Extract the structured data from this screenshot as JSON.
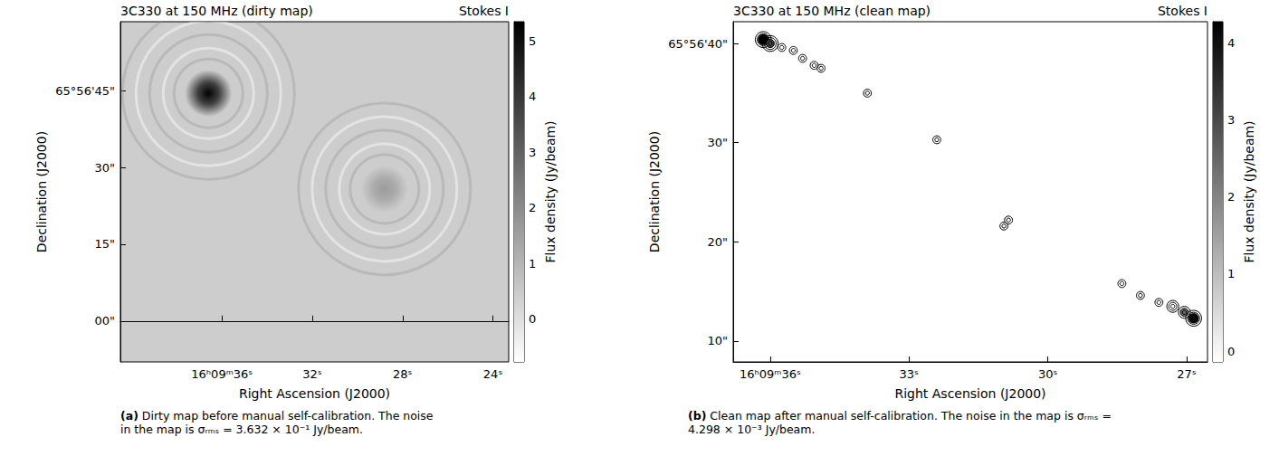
{
  "chart_data": [
    {
      "type": "image",
      "title": "3C330 at 150 MHz (dirty map)",
      "subtitle": "Stokes I",
      "x_label": "Right Ascension (J2000)",
      "y_label": "Declination (J2000)",
      "panel": "(a)",
      "caption": "Dirty map before manual self-calibration. The noise in the map is σᵣₘₛ = 3.632 × 10⁻¹ Jy/beam.",
      "xlim": [
        40.5,
        23.3
      ],
      "xticks": [
        {
          "value": 36,
          "label": "16ʰ09ᵐ36ˢ"
        },
        {
          "value": 32,
          "label": "32ˢ"
        },
        {
          "value": 28,
          "label": "28ˢ"
        },
        {
          "value": 24,
          "label": "24ˢ"
        }
      ],
      "ylim": [
        -8,
        58.5
      ],
      "yticks": [
        {
          "value": 0,
          "label": "00\""
        },
        {
          "value": 15,
          "label": "15\""
        },
        {
          "value": 30,
          "label": "30\""
        },
        {
          "value": 45,
          "label": "65°56'45\""
        }
      ],
      "colorbar_label": "Flux density (Jy/beam)",
      "colorbar_range": [
        -0.77,
        5.35
      ],
      "colorbar_ticks": [
        0,
        1,
        2,
        3,
        4,
        5
      ],
      "sources": [
        {
          "ra": 36.6,
          "dec": 44.5,
          "peak": 5.3
        },
        {
          "ra": 28.8,
          "dec": 25.8,
          "peak": 1.6
        }
      ]
    },
    {
      "type": "contour",
      "title": "3C330 at 150 MHz (clean map)",
      "subtitle": "Stokes I",
      "x_label": "Right Ascension (J2000)",
      "y_label": "Declination (J2000)",
      "panel": "(b)",
      "caption": "Clean map after manual self-calibration. The noise in the map is σᵣₘₛ = 4.298 × 10⁻³ Jy/beam.",
      "xlim": [
        36.8,
        26.55
      ],
      "xticks": [
        {
          "value": 36,
          "label": "16ʰ09ᵐ36ˢ"
        },
        {
          "value": 33,
          "label": "33ˢ"
        },
        {
          "value": 30,
          "label": "30ˢ"
        },
        {
          "value": 27,
          "label": "27ˢ"
        }
      ],
      "ylim": [
        7.9,
        42.2
      ],
      "yticks": [
        {
          "value": 10,
          "label": "10\""
        },
        {
          "value": 20,
          "label": "20\""
        },
        {
          "value": 30,
          "label": "30\""
        },
        {
          "value": 40,
          "label": "65°56'40\""
        }
      ],
      "colorbar_label": "Flux density (Jy/beam)",
      "colorbar_range": [
        -0.14,
        4.27
      ],
      "colorbar_ticks": [
        0,
        1,
        2,
        3,
        4
      ],
      "sources": [
        {
          "ra": 36.15,
          "dec": 40.4,
          "peak": 4.6
        },
        {
          "ra": 36.0,
          "dec": 40.0,
          "peak": 3.0
        },
        {
          "ra": 35.75,
          "dec": 39.6,
          "peak": 0.6
        },
        {
          "ra": 35.5,
          "dec": 39.3,
          "peak": 0.4
        },
        {
          "ra": 35.3,
          "dec": 38.5,
          "peak": 0.4
        },
        {
          "ra": 35.05,
          "dec": 37.8,
          "peak": 0.3
        },
        {
          "ra": 34.9,
          "dec": 37.5,
          "peak": 0.3
        },
        {
          "ra": 33.9,
          "dec": 35.0,
          "peak": 0.1
        },
        {
          "ra": 32.4,
          "dec": 30.3,
          "peak": 0.1
        },
        {
          "ra": 30.95,
          "dec": 21.6,
          "peak": 0.1
        },
        {
          "ra": 30.85,
          "dec": 22.2,
          "peak": 0.1
        },
        {
          "ra": 28.4,
          "dec": 15.8,
          "peak": 0.1
        },
        {
          "ra": 28.0,
          "dec": 14.6,
          "peak": 0.3
        },
        {
          "ra": 27.6,
          "dec": 13.9,
          "peak": 0.5
        },
        {
          "ra": 27.3,
          "dec": 13.5,
          "peak": 1.0
        },
        {
          "ra": 27.05,
          "dec": 12.9,
          "peak": 2.5
        },
        {
          "ra": 26.85,
          "dec": 12.3,
          "peak": 4.0
        }
      ]
    }
  ]
}
